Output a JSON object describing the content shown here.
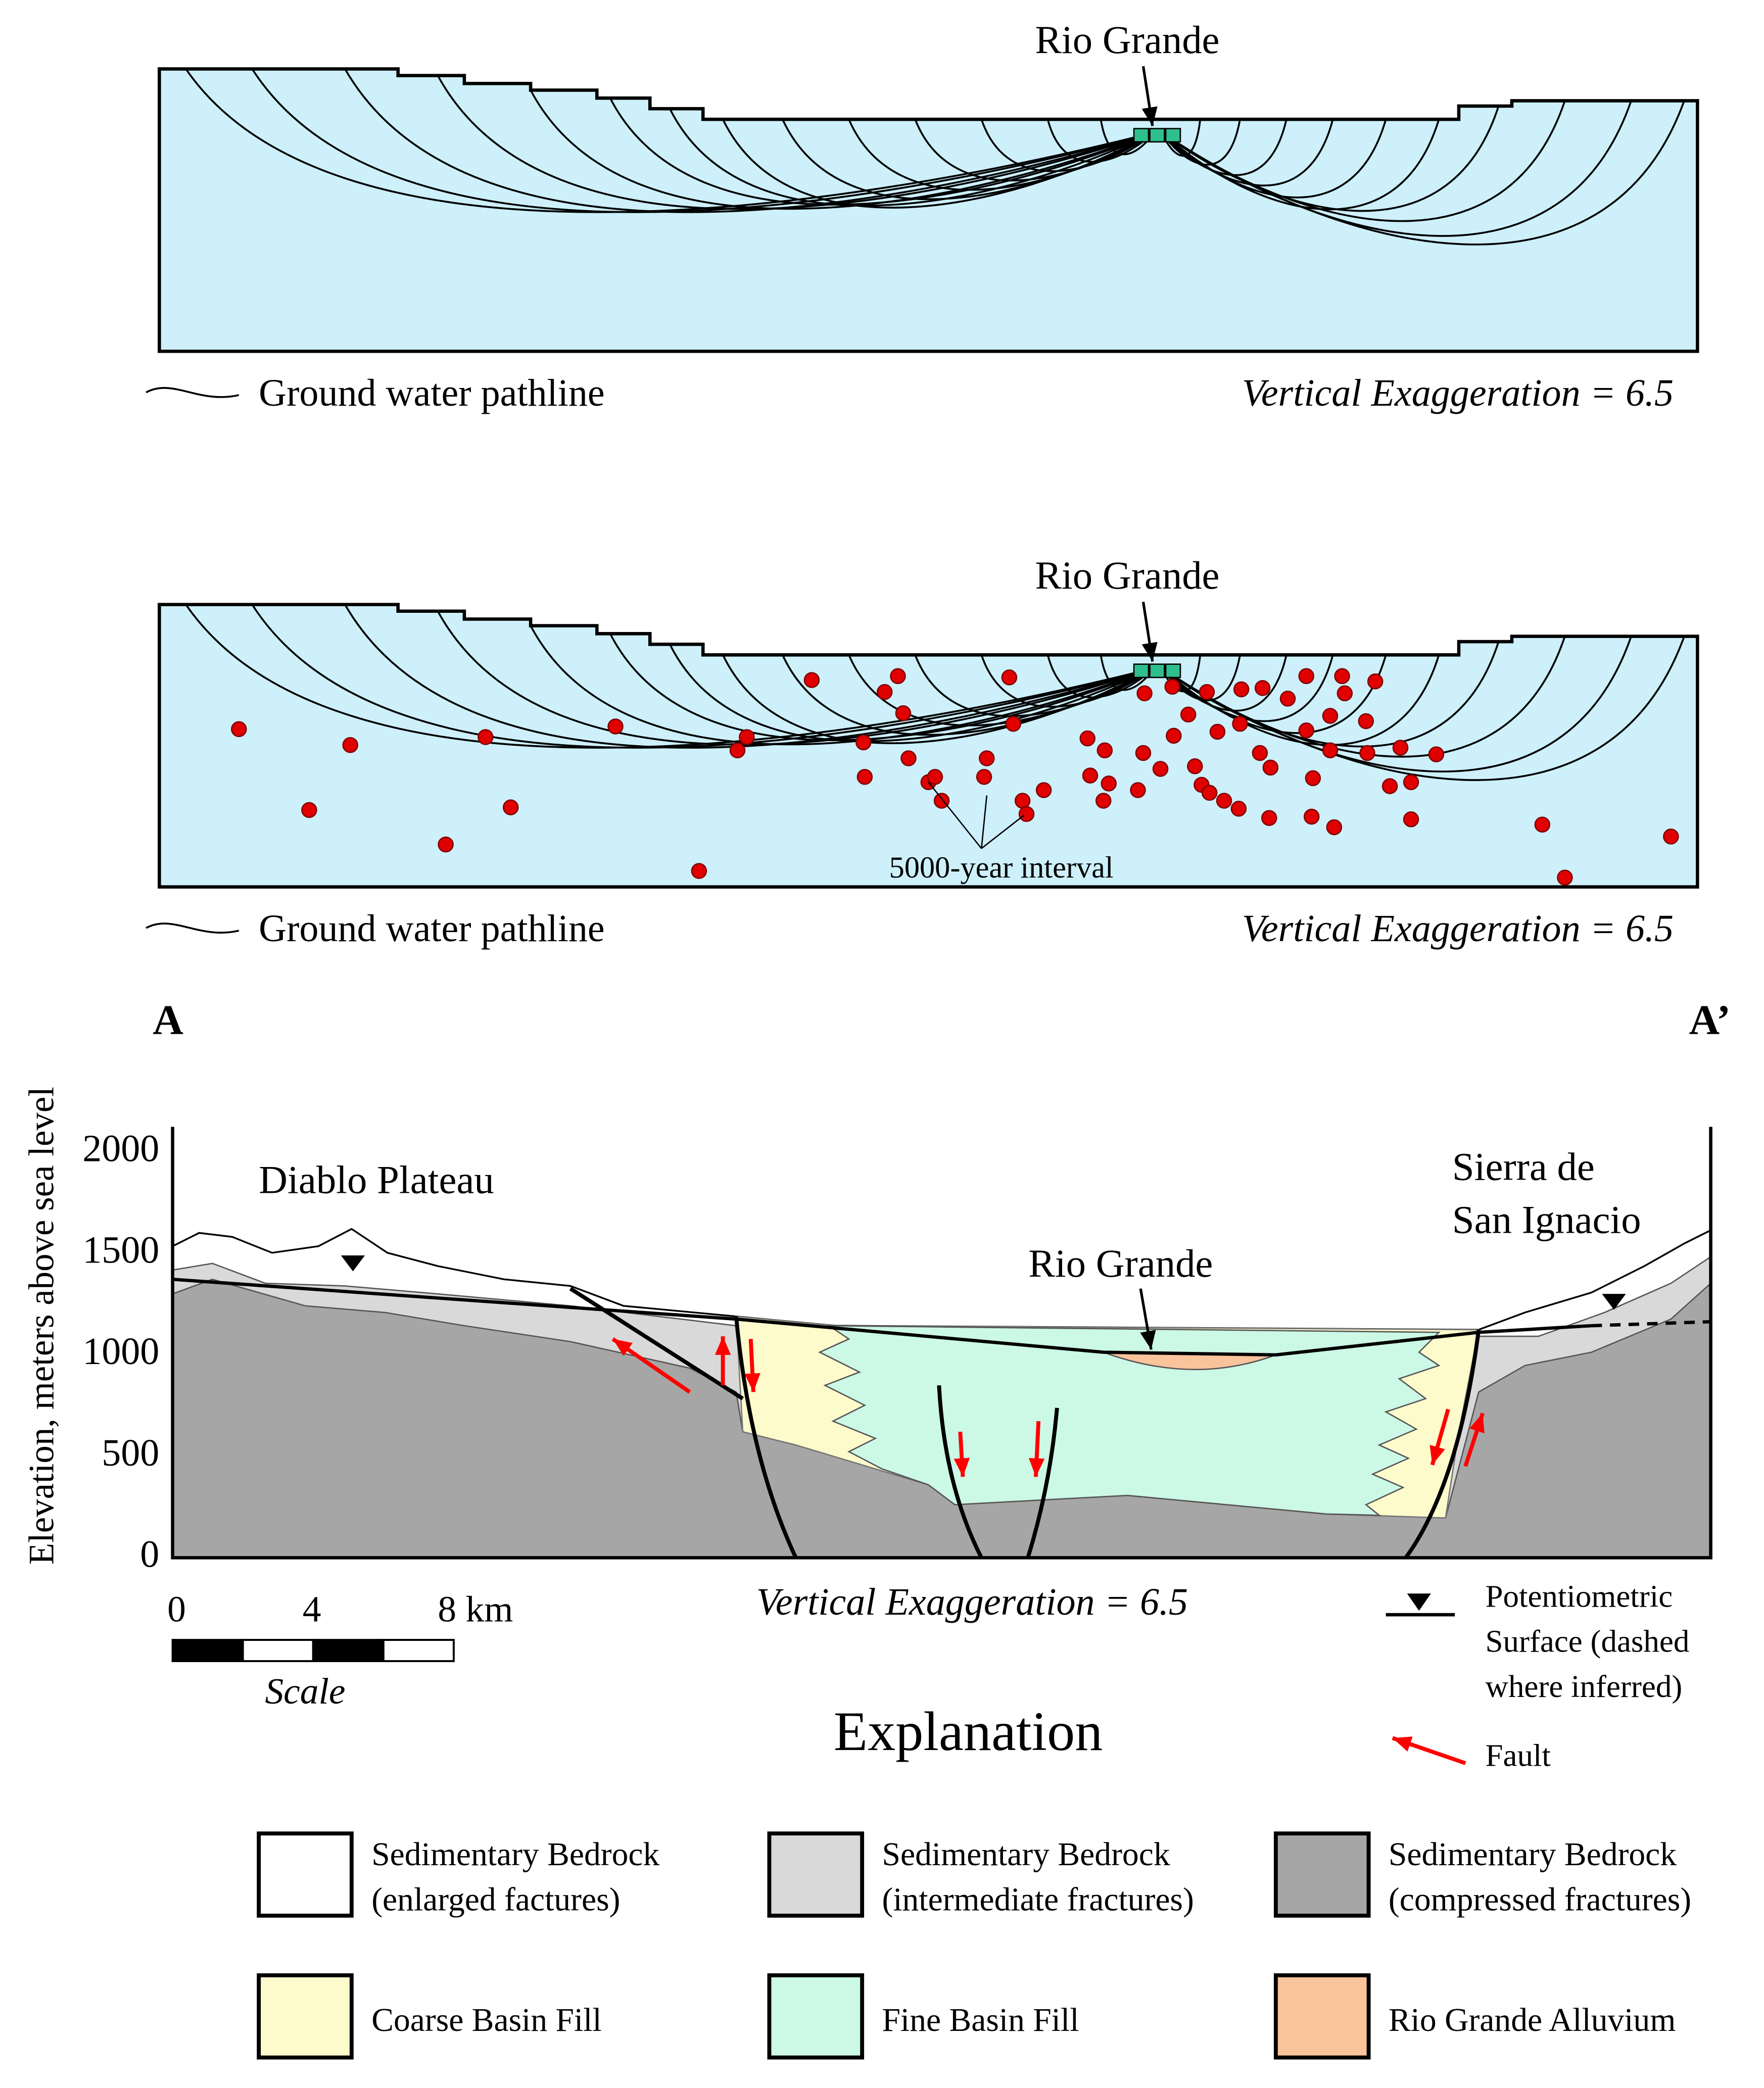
{
  "panels": [
    {
      "river_label": "Rio Grande",
      "legend_label": "Ground water pathline",
      "exaggeration": "Vertical Exaggeration = 6.5"
    },
    {
      "river_label": "Rio Grande",
      "legend_label": "Ground water pathline",
      "exaggeration": "Vertical Exaggeration = 6.5",
      "interval_label": "5000-year interval"
    }
  ],
  "cross_section": {
    "left_label": "A",
    "right_label": "A’",
    "y_axis": {
      "label": "Elevation, meters above sea level",
      "ticks": [
        0,
        500,
        1000,
        1500,
        2000
      ]
    },
    "place_labels": {
      "plateau": "Diablo Plateau",
      "sierra": [
        "Sierra de",
        "San Ignacio"
      ],
      "river": "Rio Grande"
    },
    "scale": {
      "ticks": [
        "0",
        "4",
        "8 km"
      ],
      "label": "Scale"
    },
    "exaggeration": "Vertical Exaggeration = 6.5",
    "potentiometric_legend": [
      "Potentiometric",
      "Surface (dashed",
      "where inferred)"
    ],
    "fault_legend": "Fault"
  },
  "explanation": {
    "title": "Explanation",
    "items": [
      {
        "lines": [
          "Sedimentary Bedrock",
          "(enlarged factures)"
        ],
        "color": "#ffffff"
      },
      {
        "lines": [
          "Sedimentary Bedrock",
          "(intermediate fractures)"
        ],
        "color": "#d9d9d9"
      },
      {
        "lines": [
          "Sedimentary Bedrock",
          "(compressed fractures)"
        ],
        "color": "#a6a6a6"
      },
      {
        "lines": [
          "Coarse Basin Fill"
        ],
        "color": "#fdfbcc"
      },
      {
        "lines": [
          "Fine Basin Fill"
        ],
        "color": "#ccf8e6"
      },
      {
        "lines": [
          "Rio Grande Alluvium"
        ],
        "color": "#f9c39c"
      }
    ]
  }
}
